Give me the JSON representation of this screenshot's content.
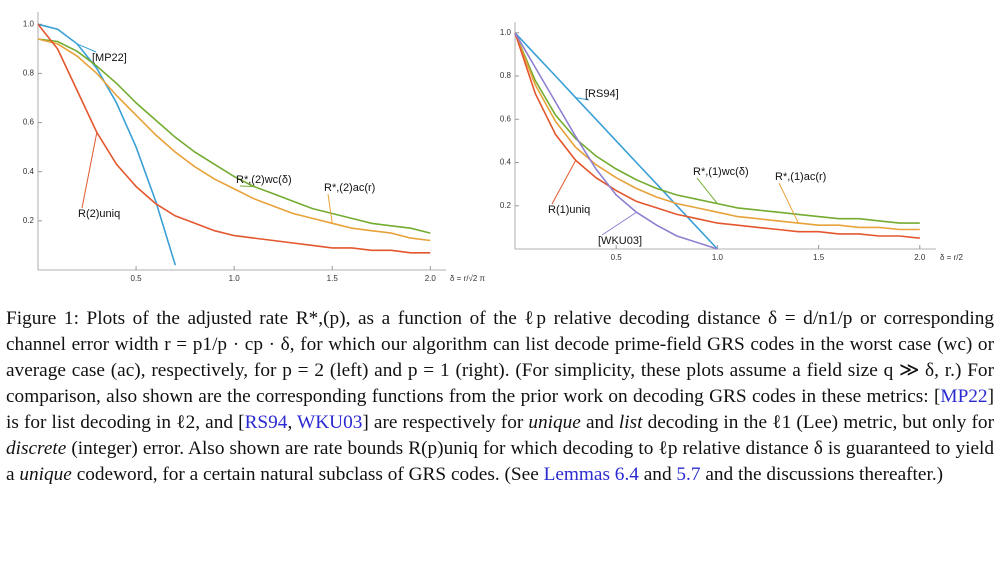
{
  "chart_data": [
    {
      "type": "line",
      "x_label": "δ = r/√2 π",
      "x": [
        0,
        0.1,
        0.2,
        0.3,
        0.4,
        0.5,
        0.6,
        0.7,
        0.8,
        0.9,
        1.0,
        1.1,
        1.2,
        1.3,
        1.4,
        1.5,
        1.6,
        1.7,
        1.8,
        1.9,
        2.0
      ],
      "xlim": [
        0,
        2.08
      ],
      "ylim": [
        0,
        1.05
      ],
      "xticks": [
        0.5,
        {
          "value": 1,
          "label": "1.0"
        },
        1.5,
        {
          "value": 2,
          "label": "2.0"
        }
      ],
      "yticks": [
        0.2,
        0.4,
        0.6,
        0.8,
        {
          "value": 1,
          "label": "1.0"
        }
      ],
      "grid": false,
      "series": [
        {
          "name": "[MP22]",
          "color": "#3a9fd6",
          "values": [
            1.0,
            0.98,
            0.92,
            0.82,
            0.68,
            0.5,
            0.28,
            0.02,
            null,
            null,
            null,
            null,
            null,
            null,
            null,
            null,
            null,
            null,
            null,
            null,
            null
          ]
        },
        {
          "name": "R*,(2)wc(δ)",
          "color": "#73ac30",
          "values": [
            0.94,
            0.93,
            0.89,
            0.83,
            0.76,
            0.68,
            0.61,
            0.54,
            0.48,
            0.43,
            0.38,
            0.34,
            0.31,
            0.28,
            0.25,
            0.23,
            0.21,
            0.19,
            0.18,
            0.17,
            0.15
          ]
        },
        {
          "name": "R*,(2)ac(r)",
          "color": "#e8a23a",
          "values": [
            0.94,
            0.92,
            0.87,
            0.8,
            0.71,
            0.63,
            0.55,
            0.48,
            0.42,
            0.37,
            0.33,
            0.29,
            0.26,
            0.23,
            0.21,
            0.19,
            0.17,
            0.16,
            0.15,
            0.13,
            0.12
          ]
        },
        {
          "name": "R(2)uniq",
          "color": "#e4572e",
          "values": [
            1.0,
            0.9,
            0.73,
            0.56,
            0.43,
            0.34,
            0.27,
            0.22,
            0.19,
            0.16,
            0.14,
            0.13,
            0.12,
            0.11,
            0.1,
            0.09,
            0.09,
            0.08,
            0.08,
            0.07,
            0.07
          ]
        }
      ]
    },
    {
      "type": "line",
      "x_label": "δ = r/2",
      "x": [
        0,
        0.1,
        0.2,
        0.3,
        0.4,
        0.5,
        0.6,
        0.7,
        0.8,
        0.9,
        1.0,
        1.1,
        1.2,
        1.3,
        1.4,
        1.5,
        1.6,
        1.7,
        1.8,
        1.9,
        2.0
      ],
      "xlim": [
        0,
        2.08
      ],
      "ylim": [
        0,
        1.05
      ],
      "xticks": [
        0.5,
        {
          "value": 1,
          "label": "1.0"
        },
        1.5,
        {
          "value": 2,
          "label": "2.0"
        }
      ],
      "yticks": [
        0.2,
        0.4,
        0.6,
        0.8,
        {
          "value": 1,
          "label": "1.0"
        }
      ],
      "grid": false,
      "series": [
        {
          "name": "[RS94]",
          "color": "#3a9fd6",
          "values": [
            1.0,
            0.9,
            0.8,
            0.7,
            0.6,
            0.5,
            0.4,
            0.3,
            0.2,
            0.1,
            0.0,
            null,
            null,
            null,
            null,
            null,
            null,
            null,
            null,
            null,
            null
          ]
        },
        {
          "name": "R*,(1)wc(δ)",
          "color": "#73ac30",
          "values": [
            1.0,
            0.78,
            0.62,
            0.51,
            0.43,
            0.37,
            0.32,
            0.28,
            0.25,
            0.23,
            0.21,
            0.19,
            0.18,
            0.17,
            0.16,
            0.15,
            0.14,
            0.14,
            0.13,
            0.12,
            0.12
          ]
        },
        {
          "name": "R*,(1)ac(r)",
          "color": "#e8a23a",
          "values": [
            1.0,
            0.76,
            0.59,
            0.47,
            0.39,
            0.33,
            0.28,
            0.24,
            0.21,
            0.19,
            0.17,
            0.15,
            0.14,
            0.13,
            0.12,
            0.11,
            0.11,
            0.1,
            0.1,
            0.09,
            0.09
          ]
        },
        {
          "name": "R(1)uniq",
          "color": "#e4572e",
          "values": [
            1.0,
            0.72,
            0.53,
            0.41,
            0.33,
            0.27,
            0.22,
            0.19,
            0.16,
            0.14,
            0.12,
            0.11,
            0.1,
            0.09,
            0.08,
            0.08,
            0.07,
            0.07,
            0.06,
            0.06,
            0.05
          ]
        },
        {
          "name": "[WKU03]",
          "color": "#8f80d0",
          "values": [
            1.0,
            0.84,
            0.68,
            0.52,
            0.37,
            0.25,
            0.17,
            0.11,
            0.06,
            0.03,
            0.0,
            null,
            null,
            null,
            null,
            null,
            null,
            null,
            null,
            null,
            null
          ]
        }
      ]
    }
  ],
  "caption": [
    {
      "text": "Figure 1: Plots of the adjusted rate R*,(p), as a function of the ℓp relative decoding distance δ = d/n1/p or corresponding channel error width r = p1/p · cp · δ, for which our algorithm can list decode prime-field GRS codes in the worst case (wc) or average case (ac), respectively, for p = 2 (left) and p = 1 (right). (For simplicity, these plots assume a field size q ≫ δ, r.) For comparison, also shown are the corresponding functions from the prior work on decoding GRS codes in these metrics: ["
    },
    {
      "text": "MP22",
      "style": "link"
    },
    {
      "text": "] is for list decoding in ℓ2, and ["
    },
    {
      "text": "RS94",
      "style": "link"
    },
    {
      "text": ", "
    },
    {
      "text": "WKU03",
      "style": "link"
    },
    {
      "text": "] are respectively for "
    },
    {
      "text": "unique",
      "style": "italic"
    },
    {
      "text": " and "
    },
    {
      "text": "list",
      "style": "italic"
    },
    {
      "text": " decoding in the ℓ1 (Lee) metric, but only for "
    },
    {
      "text": "discrete",
      "style": "italic"
    },
    {
      "text": " (integer) error. Also shown are rate bounds R(p)uniq for which decoding to ℓp relative distance δ is guaranteed to yield a "
    },
    {
      "text": "unique",
      "style": "italic"
    },
    {
      "text": " codeword, for a certain natural subclass of GRS codes. (See "
    },
    {
      "text": "Lemmas 6.4",
      "style": "link"
    },
    {
      "text": " and "
    },
    {
      "text": "5.7",
      "style": "link"
    },
    {
      "text": " and the discussions thereafter.)"
    }
  ]
}
